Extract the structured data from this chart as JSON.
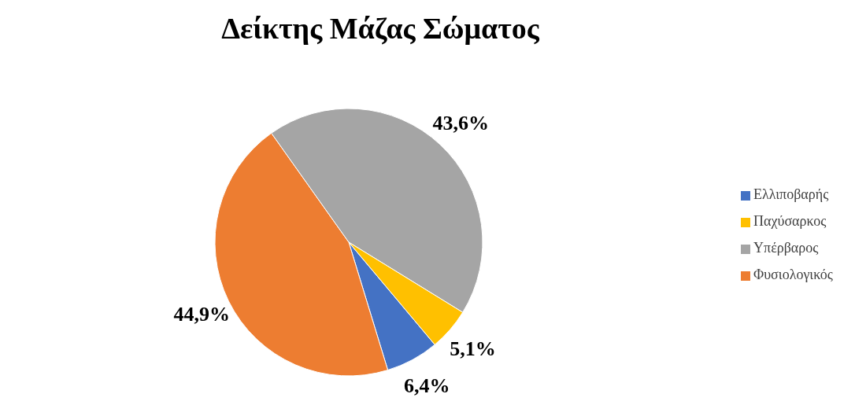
{
  "chart_data": {
    "type": "pie",
    "title": "Δείκτης Μάζας Σώματος",
    "categories": [
      "Ελλιποβαρής",
      "Φυσιολογικός",
      "Υπέρβαρος",
      "Παχύσαρκος"
    ],
    "values": [
      6.4,
      44.9,
      43.6,
      5.1
    ],
    "value_labels": [
      "6,4%",
      "44,9%",
      "43,6%",
      "5,1%"
    ],
    "colors": [
      "#4472c4",
      "#ed7d31",
      "#a5a5a5",
      "#ffc000"
    ],
    "legend": "right"
  }
}
